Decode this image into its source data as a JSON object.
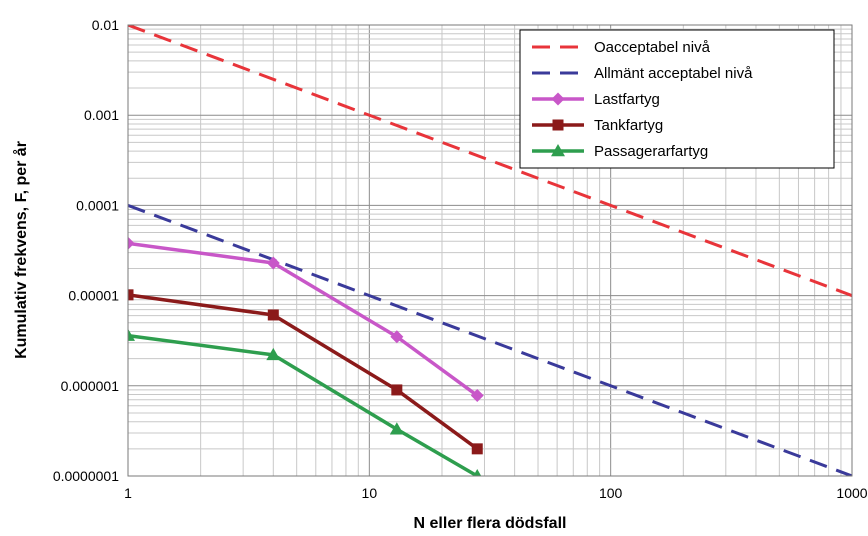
{
  "chart_data": {
    "type": "line",
    "title": "",
    "xlabel": "N eller flera dödsfall",
    "ylabel": "Kumulativ frekvens, F, per år",
    "xscale": "log",
    "yscale": "log",
    "xlim": [
      1,
      1000
    ],
    "ylim": [
      1e-07,
      0.01
    ],
    "x_ticks": [
      {
        "value": 1,
        "label": "1"
      },
      {
        "value": 10,
        "label": "10"
      },
      {
        "value": 100,
        "label": "100"
      },
      {
        "value": 1000,
        "label": "1000"
      }
    ],
    "y_ticks": [
      {
        "value": 0.01,
        "label": "0.01"
      },
      {
        "value": 0.001,
        "label": "0.001"
      },
      {
        "value": 0.0001,
        "label": "0.0001"
      },
      {
        "value": 1e-05,
        "label": "0.00001"
      },
      {
        "value": 1e-06,
        "label": "0.000001"
      },
      {
        "value": 1e-07,
        "label": "0.0000001"
      }
    ],
    "grid": true,
    "legend_position": "top-right",
    "series": [
      {
        "name": "Oacceptabel nivå",
        "color": "#e8343a",
        "style": "dashed",
        "marker": "none",
        "x": [
          1,
          1000
        ],
        "y": [
          0.01,
          1e-05
        ]
      },
      {
        "name": "Allmänt acceptabel nivå",
        "color": "#3a3a9a",
        "style": "dashed",
        "marker": "none",
        "x": [
          1,
          1000
        ],
        "y": [
          0.0001,
          1e-07
        ]
      },
      {
        "name": "Lastfartyg",
        "color": "#c857c8",
        "style": "solid",
        "marker": "diamond",
        "x": [
          1,
          4,
          13,
          28
        ],
        "y": [
          3.8e-05,
          2.3e-05,
          3.5e-06,
          7.8e-07
        ]
      },
      {
        "name": "Tankfartyg",
        "color": "#8b1a1a",
        "style": "solid",
        "marker": "square",
        "x": [
          1,
          4,
          13,
          28
        ],
        "y": [
          1.02e-05,
          6.1e-06,
          9e-07,
          2e-07
        ]
      },
      {
        "name": "Passagerarfartyg",
        "color": "#2e9e4e",
        "style": "solid",
        "marker": "triangle",
        "x": [
          1,
          4,
          13,
          28
        ],
        "y": [
          3.6e-06,
          2.2e-06,
          3.3e-07,
          1e-07
        ]
      }
    ]
  }
}
